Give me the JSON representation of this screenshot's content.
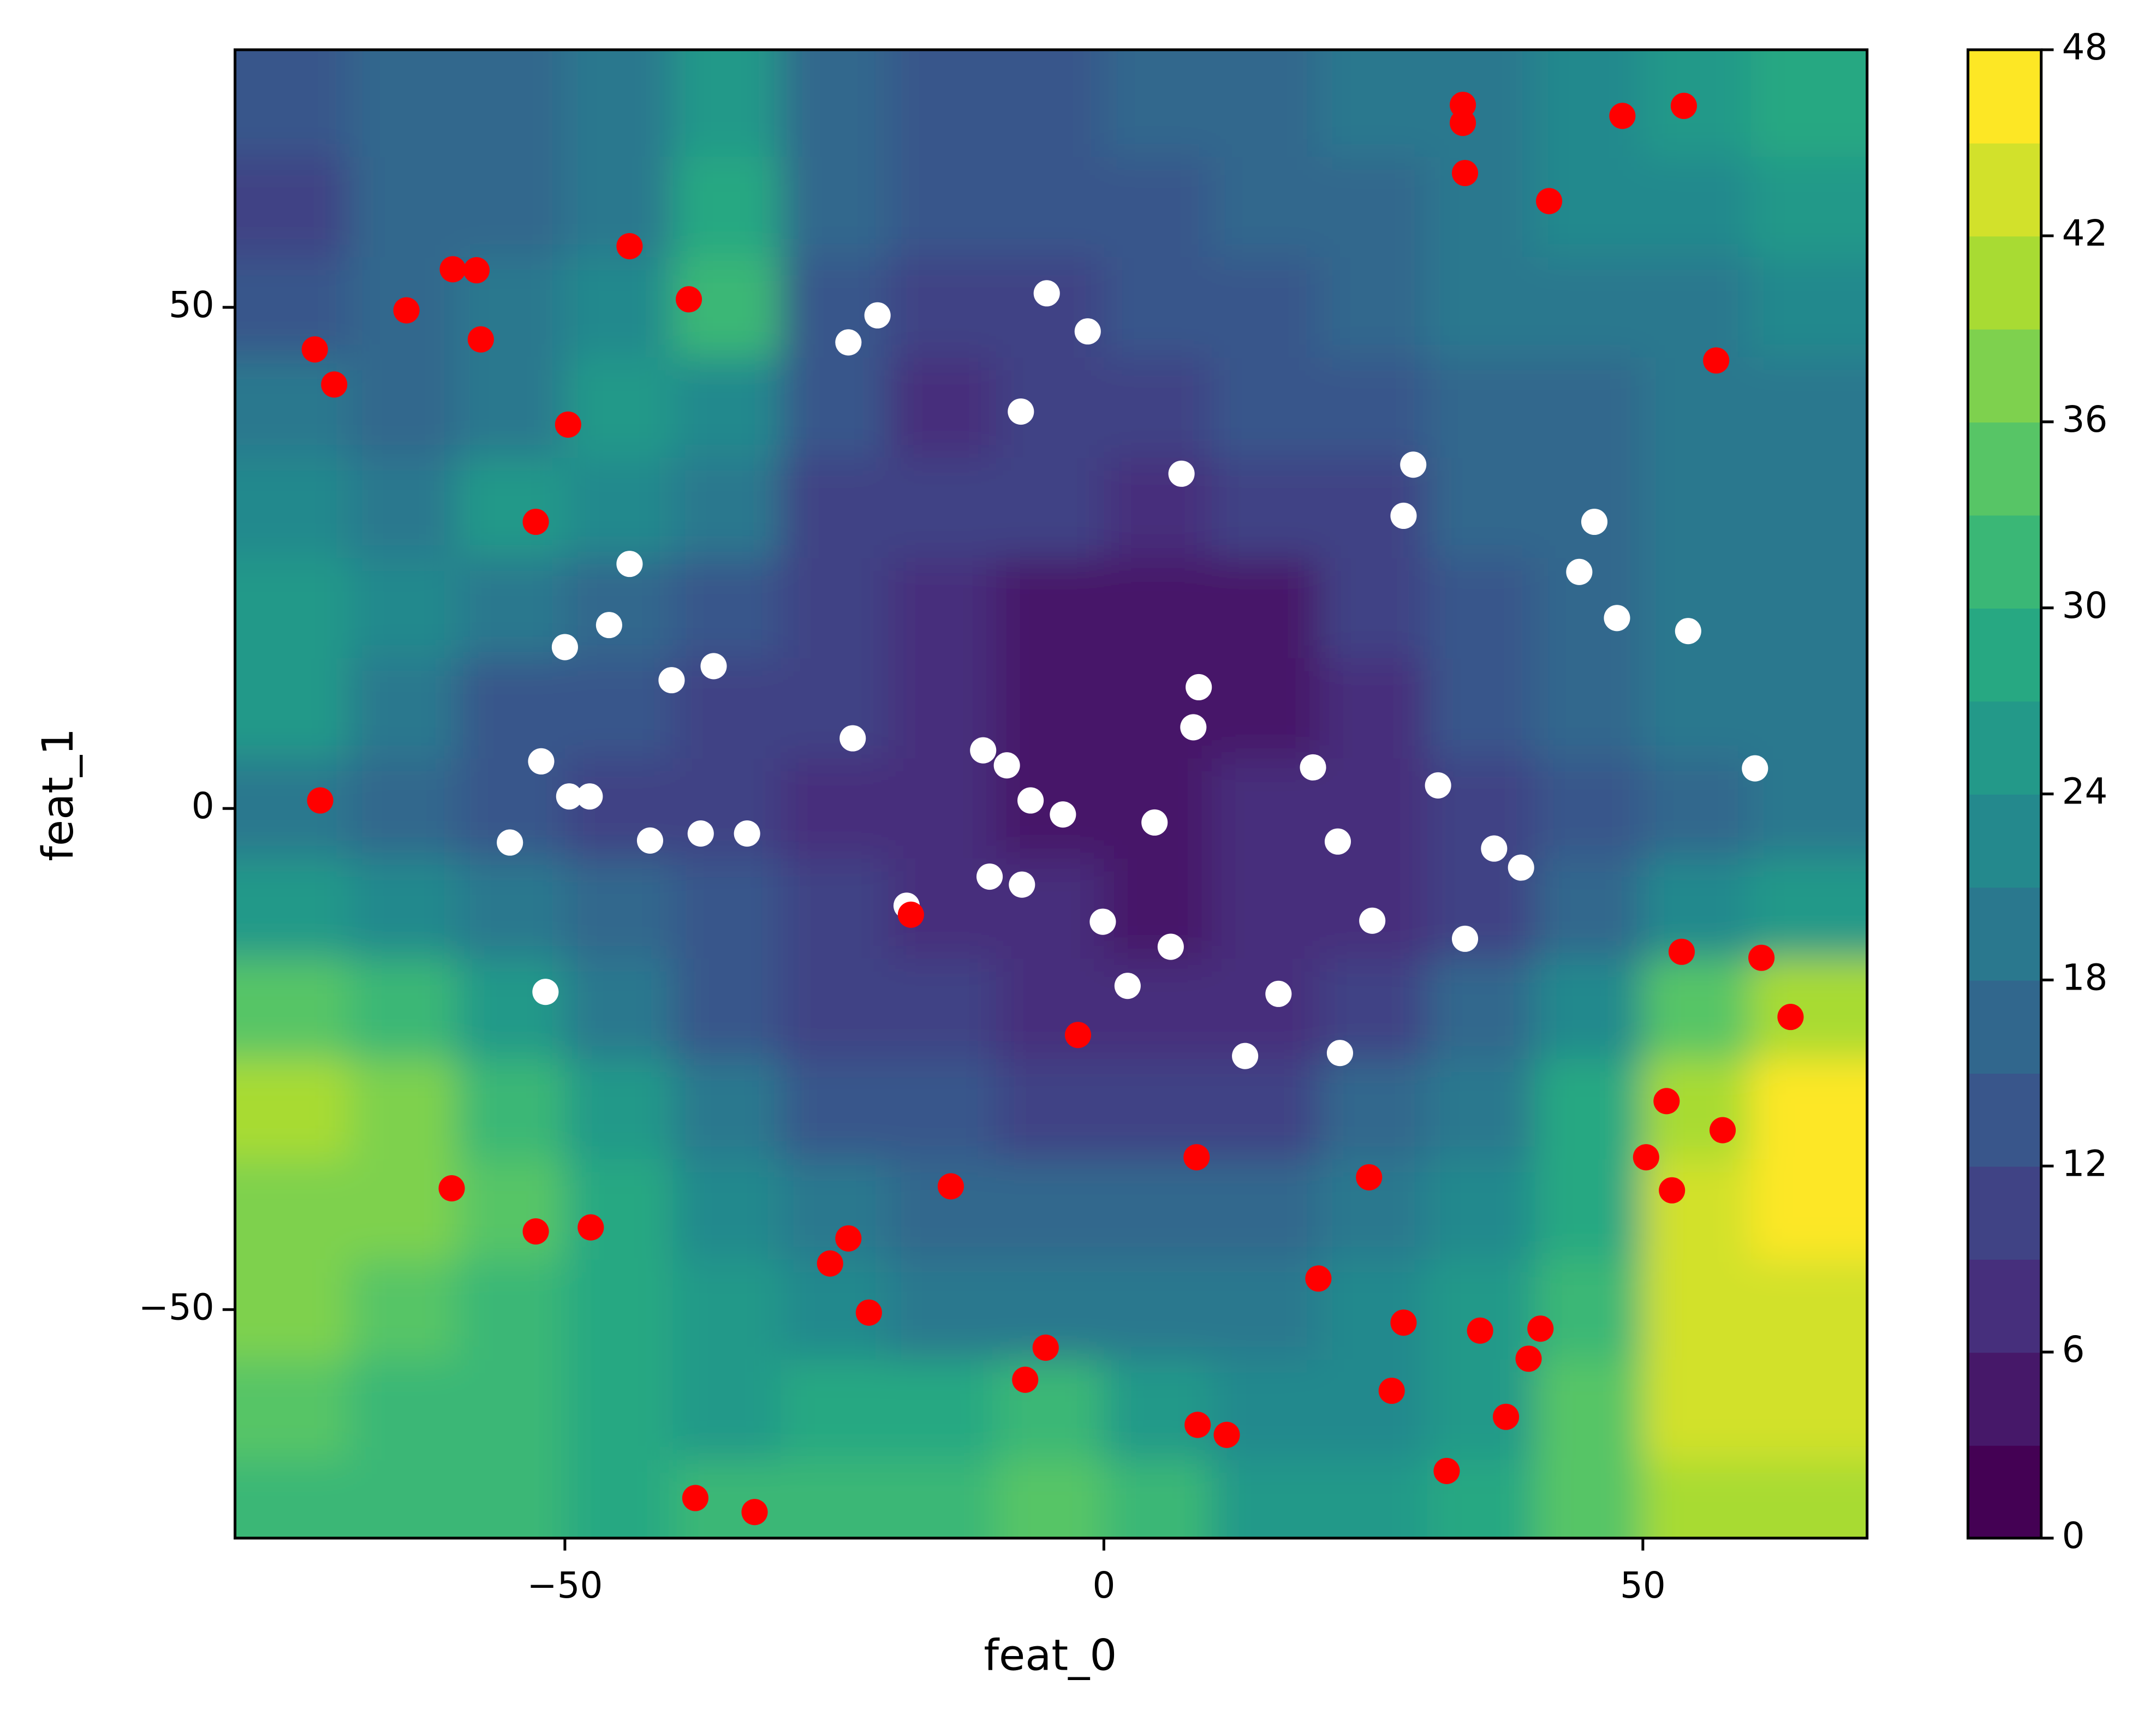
{
  "chart_data": {
    "type": "contour",
    "xlabel": "feat_0",
    "ylabel": "feat_1",
    "xlim": [
      -80.6,
      70.8
    ],
    "ylim": [
      -72.8,
      75.7
    ],
    "xticks": [
      {
        "value": -50,
        "label": "−50"
      },
      0,
      50
    ],
    "yticks": [
      {
        "value": -50,
        "label": "−50"
      },
      0,
      50
    ],
    "colormap": "viridis",
    "levels": [
      0,
      3,
      6,
      9,
      12,
      15,
      18,
      21,
      24,
      27,
      30,
      33,
      36,
      39,
      42,
      45,
      48
    ],
    "clim": [
      0,
      48
    ],
    "cticks": [
      0,
      6,
      12,
      18,
      24,
      30,
      36,
      42,
      48
    ],
    "field": {
      "x": [
        -75,
        -65,
        -55,
        -45,
        -35,
        -25,
        -15,
        -5,
        5,
        15,
        25,
        35,
        45,
        55,
        65
      ],
      "y": [
        70,
        60,
        50,
        40,
        30,
        20,
        10,
        0,
        -10,
        -20,
        -30,
        -40,
        -50,
        -60,
        -70
      ],
      "z": [
        [
          13,
          16,
          16,
          18,
          24,
          15,
          14,
          14,
          15,
          17,
          18,
          20,
          21,
          24,
          28
        ],
        [
          11,
          15,
          16,
          20,
          29,
          16,
          13,
          12,
          13,
          15,
          16,
          19,
          21,
          22,
          25
        ],
        [
          14,
          17,
          18,
          22,
          30,
          14,
          10,
          10,
          12,
          14,
          16,
          18,
          18,
          20,
          22
        ],
        [
          18,
          16,
          20,
          26,
          22,
          12,
          7,
          9,
          10,
          12,
          14,
          16,
          17,
          20,
          20
        ],
        [
          22,
          19,
          24,
          22,
          18,
          11,
          9,
          9,
          8,
          9,
          11,
          15,
          17,
          19,
          19
        ],
        [
          26,
          22,
          18,
          17,
          14,
          9,
          7,
          5,
          4,
          5,
          9,
          14,
          17,
          18,
          20
        ],
        [
          24,
          20,
          14,
          13,
          11,
          9,
          8,
          5,
          4,
          5,
          8,
          12,
          16,
          18,
          18
        ],
        [
          19,
          17,
          14,
          11,
          9,
          8,
          8,
          5,
          5,
          6,
          8,
          10,
          14,
          17,
          18
        ],
        [
          24,
          22,
          18,
          15,
          12,
          9,
          8,
          6,
          5,
          6,
          8,
          11,
          16,
          22,
          24
        ],
        [
          34,
          31,
          24,
          19,
          14,
          11,
          10,
          7,
          6,
          7,
          10,
          15,
          22,
          34,
          40
        ],
        [
          39,
          38,
          30,
          24,
          18,
          14,
          12,
          11,
          10,
          11,
          15,
          20,
          27,
          40,
          45
        ],
        [
          38,
          36,
          33,
          27,
          22,
          18,
          17,
          15,
          15,
          16,
          18,
          21,
          28,
          42,
          46
        ],
        [
          37,
          34,
          32,
          28,
          26,
          22,
          20,
          18,
          19,
          20,
          21,
          24,
          30,
          44,
          44
        ],
        [
          34,
          31,
          30,
          27,
          26,
          27,
          27,
          30,
          24,
          22,
          23,
          26,
          33,
          42,
          42
        ],
        [
          32,
          32,
          30,
          28,
          30,
          30,
          30,
          34,
          30,
          26,
          25,
          27,
          34,
          39,
          39
        ]
      ]
    },
    "series": [
      {
        "type": "scatter",
        "color": "#ffffff",
        "x": [
          -23.7,
          -21.0,
          -5.3,
          -1.5,
          -7.7,
          7.2,
          28.7,
          27.8,
          45.5,
          44.1,
          47.6,
          54.2,
          60.4,
          -44.0,
          -45.9,
          -50.0,
          -40.1,
          -36.2,
          -23.3,
          -52.2,
          -49.6,
          -47.7,
          -55.1,
          -42.1,
          -37.4,
          -33.1,
          -51.8,
          -18.3,
          -11.2,
          -9.0,
          -6.8,
          -3.8,
          -10.6,
          -7.6,
          8.8,
          8.3,
          4.7,
          -0.1,
          6.2,
          2.2,
          16.2,
          13.1,
          19.4,
          21.7,
          24.9,
          21.9,
          31.0,
          36.2,
          38.7,
          33.5
        ],
        "y": [
          46.5,
          49.2,
          51.4,
          47.6,
          39.6,
          33.4,
          34.3,
          29.2,
          28.6,
          23.6,
          19.0,
          17.7,
          4.0,
          24.4,
          18.3,
          16.1,
          12.8,
          14.2,
          7.0,
          4.7,
          1.2,
          1.2,
          -3.4,
          -3.2,
          -2.5,
          -2.5,
          -18.3,
          -9.7,
          5.8,
          4.3,
          0.8,
          -0.6,
          -6.8,
          -7.6,
          12.1,
          8.1,
          -1.4,
          -11.3,
          -13.8,
          -17.7,
          -18.5,
          -24.7,
          4.1,
          -3.3,
          -11.2,
          -24.4,
          2.3,
          -4.0,
          -5.9,
          -13.0
        ]
      },
      {
        "type": "scatter",
        "color": "#ff0000",
        "x": [
          -73.2,
          -71.4,
          -64.7,
          -60.4,
          -58.2,
          -57.8,
          -44.0,
          -38.5,
          -49.7,
          -52.7,
          -72.7,
          -17.9,
          -2.4,
          -60.5,
          -52.7,
          -47.6,
          -14.2,
          -23.7,
          -25.4,
          -21.8,
          -5.4,
          -7.3,
          8.6,
          8.7,
          11.4,
          -37.9,
          -32.4,
          19.9,
          24.6,
          27.8,
          26.7,
          31.8,
          34.9,
          40.5,
          39.4,
          37.3,
          50.3,
          52.7,
          52.2,
          57.4,
          53.6,
          61.0,
          63.7,
          56.8,
          33.3,
          33.3,
          33.5,
          41.3,
          48.1,
          53.8
        ],
        "y": [
          45.8,
          42.3,
          49.7,
          53.8,
          53.7,
          46.8,
          56.1,
          50.8,
          38.3,
          28.6,
          0.8,
          -10.6,
          -22.6,
          -37.9,
          -42.2,
          -41.8,
          -37.7,
          -42.9,
          -45.4,
          -50.3,
          -53.8,
          -57.0,
          -34.8,
          -61.5,
          -62.5,
          -68.8,
          -70.2,
          -46.9,
          -36.8,
          -51.3,
          -58.1,
          -66.1,
          -52.1,
          -51.9,
          -54.9,
          -60.7,
          -34.8,
          -38.1,
          -29.2,
          -32.1,
          -14.3,
          -14.9,
          -20.8,
          44.7,
          70.2,
          68.4,
          63.4,
          60.6,
          69.1,
          70.1
        ]
      }
    ]
  }
}
